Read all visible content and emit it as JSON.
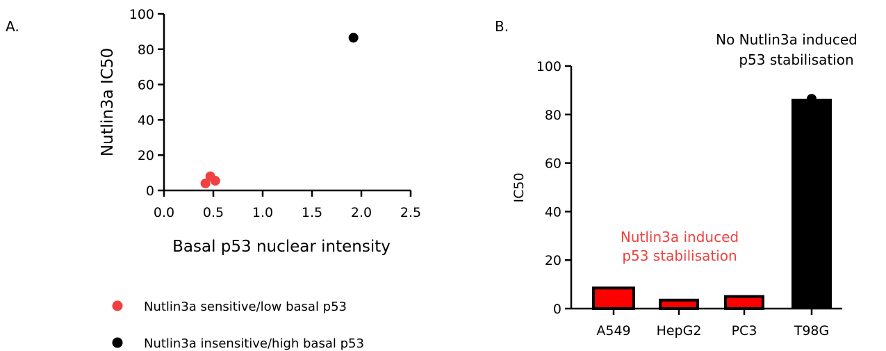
{
  "chart_data": [
    {
      "type": "scatter",
      "panel_label": "A.",
      "xlabel": "Basal p53 nuclear intensity",
      "ylabel": "Nutlin3a IC50",
      "xlim": [
        0,
        2.5
      ],
      "ylim": [
        0,
        100
      ],
      "x_ticks": [
        "0.0",
        "0.5",
        "1.0",
        "1.5",
        "2.0",
        "2.5"
      ],
      "y_ticks": [
        "0",
        "20",
        "40",
        "60",
        "80",
        "100"
      ],
      "series": [
        {
          "name": "Nutlin3a sensitive/low basal p53",
          "color": "#f04040",
          "points": [
            {
              "x": 0.42,
              "y": 4.0
            },
            {
              "x": 0.47,
              "y": 8.0
            },
            {
              "x": 0.52,
              "y": 5.5
            }
          ]
        },
        {
          "name": "Nutlin3a insensitive/high basal p53",
          "color": "#000000",
          "points": [
            {
              "x": 1.92,
              "y": 86.5
            }
          ]
        }
      ],
      "grid": false,
      "legend_placement": "bottom-left"
    },
    {
      "type": "bar",
      "panel_label": "B.",
      "ylabel": "IC50",
      "ylim": [
        0,
        100
      ],
      "y_ticks": [
        "0",
        "20",
        "40",
        "60",
        "80",
        "100"
      ],
      "categories": [
        "A549",
        "HepG2",
        "PC3",
        "T98G"
      ],
      "values": [
        8.5,
        3.5,
        5.0,
        86.5
      ],
      "colors": [
        "#ff0000",
        "#ff0000",
        "#ff0000",
        "#000000"
      ],
      "point_markers": [
        {
          "category": "T98G",
          "y": 86.5
        }
      ],
      "annotations": [
        {
          "id": "induced",
          "text_lines": [
            "Nutlin3a induced",
            "p53 stabilisation"
          ],
          "color": "#f04040"
        },
        {
          "id": "not_induced",
          "text_lines": [
            "No Nutlin3a induced",
            "p53 stabilisation"
          ],
          "color": "#000000"
        }
      ],
      "grid": false
    }
  ]
}
